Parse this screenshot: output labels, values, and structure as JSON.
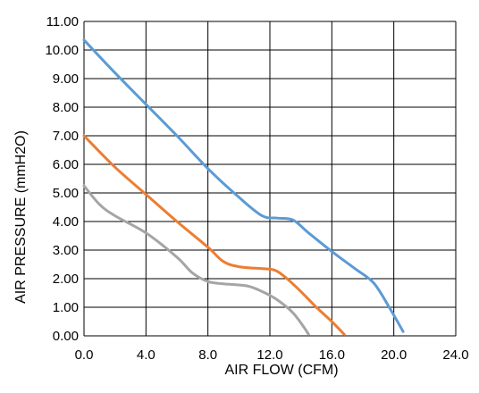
{
  "chart_data": {
    "type": "line",
    "xlabel": "AIR FLOW   (CFM)",
    "ylabel": "AIR PRESSURE   (mmH2O)",
    "xlim": [
      0,
      24
    ],
    "ylim": [
      0,
      11
    ],
    "x_ticks": [
      "0.0",
      "4.0",
      "8.0",
      "12.0",
      "16.0",
      "20.0",
      "24.0"
    ],
    "y_ticks": [
      "0.00",
      "1.00",
      "2.00",
      "3.00",
      "4.00",
      "5.00",
      "6.00",
      "7.00",
      "8.00",
      "9.00",
      "10.00",
      "11.00"
    ],
    "grid": true,
    "series": [
      {
        "color": "#5B9BD5",
        "points": [
          [
            0.0,
            10.35
          ],
          [
            2.0,
            9.2
          ],
          [
            4.0,
            8.1
          ],
          [
            6.0,
            7.0
          ],
          [
            8.0,
            5.85
          ],
          [
            10.0,
            4.85
          ],
          [
            11.5,
            4.2
          ],
          [
            12.5,
            4.12
          ],
          [
            13.5,
            4.05
          ],
          [
            14.5,
            3.6
          ],
          [
            16.0,
            2.95
          ],
          [
            17.5,
            2.35
          ],
          [
            18.7,
            1.85
          ],
          [
            19.7,
            1.0
          ],
          [
            20.6,
            0.15
          ]
        ]
      },
      {
        "color": "#ED7D31",
        "points": [
          [
            0.0,
            7.0
          ],
          [
            2.0,
            5.9
          ],
          [
            4.0,
            4.95
          ],
          [
            6.0,
            4.0
          ],
          [
            8.0,
            3.1
          ],
          [
            9.0,
            2.6
          ],
          [
            10.0,
            2.42
          ],
          [
            11.5,
            2.35
          ],
          [
            12.3,
            2.3
          ],
          [
            13.0,
            2.05
          ],
          [
            14.0,
            1.55
          ],
          [
            15.0,
            1.0
          ],
          [
            16.0,
            0.5
          ],
          [
            16.8,
            0.05
          ]
        ]
      },
      {
        "color": "#A5A5A5",
        "points": [
          [
            0.0,
            5.25
          ],
          [
            1.0,
            4.6
          ],
          [
            2.0,
            4.2
          ],
          [
            4.0,
            3.6
          ],
          [
            6.0,
            2.75
          ],
          [
            7.0,
            2.2
          ],
          [
            8.0,
            1.9
          ],
          [
            9.0,
            1.82
          ],
          [
            10.5,
            1.75
          ],
          [
            11.5,
            1.55
          ],
          [
            12.5,
            1.25
          ],
          [
            13.5,
            0.8
          ],
          [
            14.2,
            0.3
          ],
          [
            14.5,
            0.05
          ]
        ]
      }
    ]
  }
}
